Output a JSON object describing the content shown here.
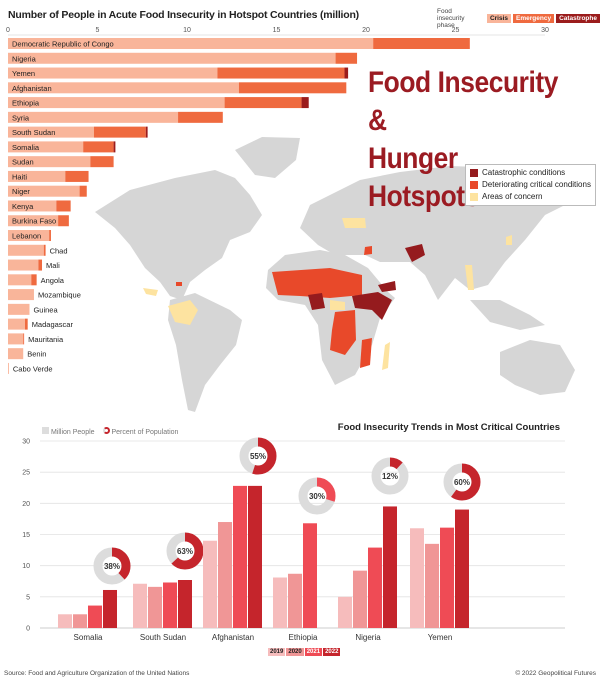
{
  "colors": {
    "crisis": "#f9b59a",
    "emergency": "#ef6a3f",
    "catastrophe": "#9b1c1c",
    "title": "#9b1b22",
    "map_land": "#d6d6d6",
    "map_catastrophic": "#951b1e",
    "map_deteriorating": "#e8492a",
    "map_concern": "#fde3a0",
    "y2019": "#f6bcbc",
    "y2020": "#f09696",
    "y2021": "#ef4b55",
    "y2022": "#c5252c",
    "donut_bg": "#dcdcdc"
  },
  "title": {
    "line1": "Food Insecurity &",
    "line2": "Hunger Hotspots"
  },
  "map_legend": {
    "catastrophic": "Catastrophic conditions",
    "deteriorating": "Deteriorating critical conditions",
    "concern": "Areas of concern"
  },
  "footer": {
    "source": "Source: Food and Agriculture Organization of the United Nations",
    "copyright": "© 2022 Geopolitical Futures"
  },
  "chart_data": [
    {
      "type": "bar",
      "orientation": "horizontal",
      "stacked": true,
      "title": "Number of People in Acute Food Insecurity in Hotspot Countries (million)",
      "legend_title": "Food insecurity phase",
      "legend_placement": "top-right",
      "xlim": [
        0,
        30
      ],
      "xticks": [
        "0",
        "5",
        "10",
        "15",
        "20",
        "25",
        "30"
      ],
      "categories": [
        "Democratic Republic of Congo",
        "Nigeria",
        "Yemen",
        "Afghanistan",
        "Ethiopia",
        "Syria",
        "South Sudan",
        "Somalia",
        "Sudan",
        "Haiti",
        "Niger",
        "Kenya",
        "Burkina Faso",
        "Lebanon",
        "Chad",
        "Mali",
        "Angola",
        "Mozambique",
        "Guinea",
        "Madagascar",
        "Mauritania",
        "Benin",
        "Cabo Verde"
      ],
      "series": [
        {
          "name": "Crisis",
          "values": [
            20.4,
            18.3,
            11.7,
            12.9,
            12.1,
            9.5,
            4.8,
            4.2,
            4.6,
            3.2,
            4.0,
            2.7,
            2.8,
            2.3,
            2.0,
            1.7,
            1.3,
            1.45,
            1.2,
            0.95,
            0.85,
            0.85,
            0.05
          ]
        },
        {
          "name": "Emergency",
          "values": [
            5.4,
            1.2,
            7.1,
            6.0,
            4.3,
            2.5,
            2.9,
            1.7,
            1.3,
            1.3,
            0.4,
            0.8,
            0.6,
            0.1,
            0.1,
            0.2,
            0.3,
            0,
            0,
            0.15,
            0.05,
            0,
            0
          ]
        },
        {
          "name": "Catastrophe",
          "values": [
            0,
            0,
            0.2,
            0,
            0.4,
            0,
            0.1,
            0.1,
            0,
            0,
            0,
            0,
            0,
            0,
            0,
            0,
            0,
            0,
            0,
            0,
            0,
            0,
            0
          ]
        }
      ]
    },
    {
      "type": "bar",
      "title": "Food Insecurity Trends in Most Critical Countries",
      "legend": {
        "million": "Million People",
        "percent": "Percent of Population"
      },
      "ylim": [
        0,
        30
      ],
      "yticks": [
        "0",
        "5",
        "10",
        "15",
        "20",
        "25",
        "30"
      ],
      "grid": true,
      "categories": [
        "Somalia",
        "South Sudan",
        "Afghanistan",
        "Ethiopia",
        "Nigeria",
        "Yemen"
      ],
      "series": [
        {
          "name": "2019",
          "values": [
            2.2,
            7.1,
            14.0,
            8.1,
            5.0,
            16.0
          ]
        },
        {
          "name": "2020",
          "values": [
            2.2,
            6.6,
            17.0,
            8.7,
            9.2,
            13.5
          ]
        },
        {
          "name": "2021",
          "values": [
            3.6,
            7.3,
            22.8,
            16.8,
            12.9,
            16.1
          ]
        },
        {
          "name": "2022",
          "values": [
            6.1,
            7.7,
            22.8,
            null,
            19.5,
            19.0
          ]
        }
      ],
      "percent_of_population": [
        38,
        63,
        55,
        30,
        12,
        60
      ],
      "percent_labels": [
        "38%",
        "63%",
        "55%",
        "30%",
        "12%",
        "60%"
      ]
    }
  ]
}
